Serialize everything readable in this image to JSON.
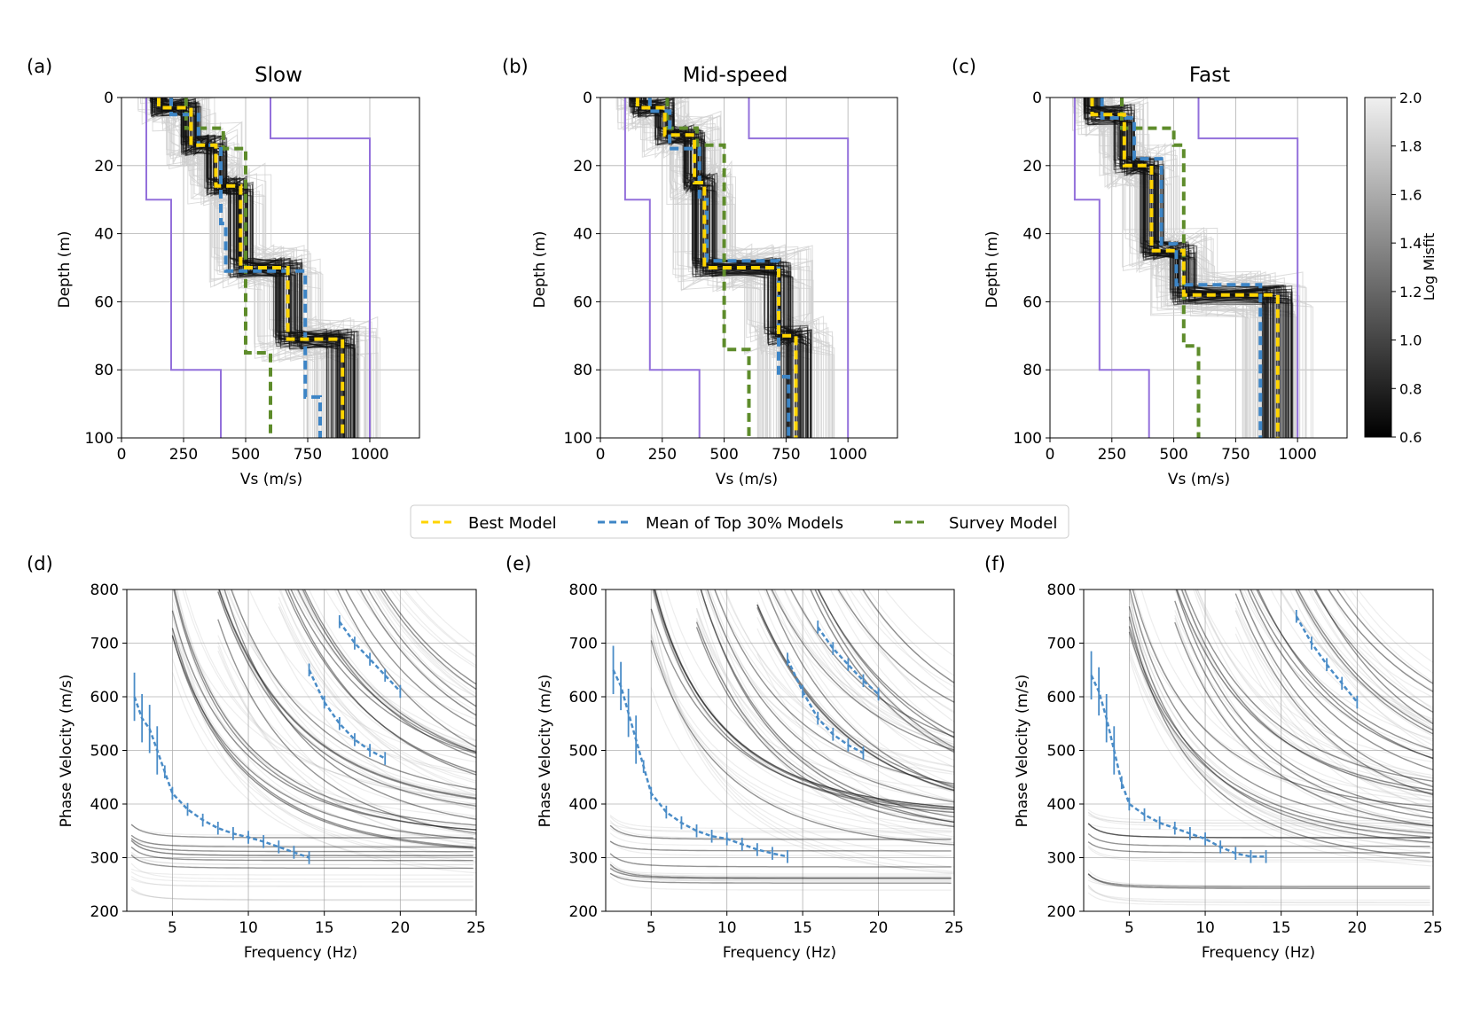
{
  "figure": {
    "legend": [
      {
        "label": "Best Model",
        "color": "#ffd400"
      },
      {
        "label": "Mean of Top 30% Models",
        "color": "#3d85c6"
      },
      {
        "label": "Survey Model",
        "color": "#5e8c2b"
      }
    ],
    "colorbar": {
      "label": "Log Misfit",
      "min": 0.6,
      "max": 2.0,
      "ticks": [
        "2.0",
        "1.8",
        "1.6",
        "1.4",
        "1.2",
        "1.0",
        "0.8",
        "0.6"
      ]
    },
    "colors": {
      "bounds": "#9370db",
      "best": "#ffd400",
      "mean": "#3d85c6",
      "survey": "#5e8c2b",
      "observed": "#4a8cc7"
    }
  },
  "chart_data": [
    {
      "type": "line",
      "panel": "(a)",
      "title": "Slow",
      "xlabel": "Vs (m/s)",
      "ylabel": "Depth (m)",
      "xlim": [
        0,
        1200
      ],
      "ylim": [
        100,
        0
      ],
      "xticks": [
        0,
        250,
        500,
        750,
        1000
      ],
      "yticks": [
        0,
        20,
        40,
        60,
        80,
        100
      ],
      "bounds_min": {
        "vs": [
          100,
          100,
          200,
          200,
          400,
          400
        ],
        "depth": [
          0,
          30,
          30,
          80,
          80,
          100
        ]
      },
      "bounds_max": {
        "vs": [
          600,
          600,
          1000,
          1000
        ],
        "depth": [
          0,
          12,
          12,
          100
        ]
      },
      "best": {
        "vs": [
          150,
          150,
          280,
          280,
          380,
          380,
          480,
          480,
          670,
          670,
          890,
          890
        ],
        "depth": [
          0,
          3,
          3,
          14,
          14,
          26,
          26,
          50,
          50,
          71,
          71,
          100
        ]
      },
      "mean": {
        "vs": [
          200,
          200,
          310,
          310,
          400,
          400,
          420,
          420,
          740,
          740,
          800,
          800
        ],
        "depth": [
          0,
          5,
          5,
          14,
          14,
          37,
          37,
          51,
          51,
          88,
          88,
          100
        ]
      },
      "survey": {
        "vs": [
          260,
          260,
          410,
          410,
          500,
          500,
          600,
          600
        ],
        "depth": [
          0,
          9,
          9,
          15,
          15,
          75,
          75,
          100
        ]
      }
    },
    {
      "type": "line",
      "panel": "(b)",
      "title": "Mid-speed",
      "xlabel": "Vs (m/s)",
      "ylabel": "Depth (m)",
      "xlim": [
        0,
        1200
      ],
      "ylim": [
        100,
        0
      ],
      "xticks": [
        0,
        250,
        500,
        750,
        1000
      ],
      "yticks": [
        0,
        20,
        40,
        60,
        80,
        100
      ],
      "bounds_min": {
        "vs": [
          100,
          100,
          200,
          200,
          400,
          400
        ],
        "depth": [
          0,
          30,
          30,
          80,
          80,
          100
        ]
      },
      "bounds_max": {
        "vs": [
          600,
          600,
          1000,
          1000
        ],
        "depth": [
          0,
          12,
          12,
          100
        ]
      },
      "best": {
        "vs": [
          150,
          150,
          260,
          260,
          380,
          380,
          420,
          420,
          720,
          720,
          790,
          790
        ],
        "depth": [
          0,
          3,
          3,
          11,
          11,
          25,
          25,
          50,
          50,
          70,
          70,
          100
        ]
      },
      "mean": {
        "vs": [
          200,
          200,
          280,
          280,
          400,
          400,
          430,
          430,
          720,
          720,
          760,
          760
        ],
        "depth": [
          0,
          4,
          4,
          15,
          15,
          30,
          30,
          48,
          48,
          82,
          82,
          100
        ]
      },
      "survey": {
        "vs": [
          270,
          270,
          390,
          390,
          500,
          500,
          600,
          600
        ],
        "depth": [
          0,
          9,
          9,
          14,
          14,
          74,
          74,
          100
        ]
      }
    },
    {
      "type": "line",
      "panel": "(c)",
      "title": "Fast",
      "xlabel": "Vs (m/s)",
      "ylabel": "Depth (m)",
      "xlim": [
        0,
        1200
      ],
      "ylim": [
        100,
        0
      ],
      "xticks": [
        0,
        250,
        500,
        750,
        1000
      ],
      "yticks": [
        0,
        20,
        40,
        60,
        80,
        100
      ],
      "bounds_min": {
        "vs": [
          100,
          100,
          200,
          200,
          400,
          400
        ],
        "depth": [
          0,
          30,
          30,
          80,
          80,
          100
        ]
      },
      "bounds_max": {
        "vs": [
          600,
          600,
          1000,
          1000
        ],
        "depth": [
          0,
          12,
          12,
          100
        ]
      },
      "best": {
        "vs": [
          170,
          170,
          300,
          300,
          410,
          410,
          540,
          540,
          920,
          920
        ],
        "depth": [
          0,
          5,
          5,
          20,
          20,
          45,
          45,
          58,
          58,
          100
        ]
      },
      "mean": {
        "vs": [
          210,
          210,
          340,
          340,
          450,
          450,
          510,
          510,
          850,
          850
        ],
        "depth": [
          0,
          6,
          6,
          18,
          18,
          43,
          43,
          55,
          55,
          100
        ]
      },
      "survey": {
        "vs": [
          290,
          290,
          500,
          500,
          540,
          540,
          600,
          600
        ],
        "depth": [
          0,
          9,
          9,
          14,
          14,
          73,
          73,
          100
        ]
      }
    },
    {
      "type": "line",
      "panel": "(d)",
      "xlabel": "Frequency (Hz)",
      "ylabel": "Phase Velocity (m/s)",
      "xlim": [
        2,
        25
      ],
      "ylim": [
        200,
        800
      ],
      "xticks": [
        5,
        10,
        15,
        20,
        25
      ],
      "yticks": [
        200,
        300,
        400,
        500,
        600,
        700,
        800
      ],
      "observed": [
        {
          "f": [
            2.5,
            3,
            3.5,
            4,
            4.5,
            5,
            6,
            7,
            8,
            9,
            10,
            11,
            12,
            13,
            14
          ],
          "v": [
            600,
            560,
            540,
            500,
            460,
            420,
            390,
            370,
            355,
            345,
            338,
            330,
            320,
            310,
            300
          ]
        },
        {
          "f": [
            14,
            15,
            16,
            17,
            18,
            19
          ],
          "v": [
            650,
            590,
            550,
            520,
            500,
            485
          ]
        },
        {
          "f": [
            16,
            17,
            18,
            19,
            20
          ],
          "v": [
            740,
            700,
            670,
            640,
            610
          ]
        }
      ]
    },
    {
      "type": "line",
      "panel": "(e)",
      "xlabel": "Frequency (Hz)",
      "ylabel": "Phase Velocity (m/s)",
      "xlim": [
        2,
        25
      ],
      "ylim": [
        200,
        800
      ],
      "xticks": [
        5,
        10,
        15,
        20,
        25
      ],
      "yticks": [
        200,
        300,
        400,
        500,
        600,
        700,
        800
      ],
      "observed": [
        {
          "f": [
            2.5,
            3,
            3.5,
            4,
            4.5,
            5,
            6,
            7,
            8,
            9,
            10,
            11,
            12,
            13,
            14
          ],
          "v": [
            650,
            620,
            570,
            520,
            470,
            420,
            385,
            365,
            350,
            340,
            335,
            325,
            315,
            308,
            302
          ]
        },
        {
          "f": [
            14,
            15,
            16,
            17,
            18,
            19
          ],
          "v": [
            670,
            610,
            560,
            530,
            510,
            495
          ]
        },
        {
          "f": [
            16,
            17,
            18,
            19,
            20
          ],
          "v": [
            730,
            690,
            660,
            630,
            605
          ]
        }
      ]
    },
    {
      "type": "line",
      "panel": "(f)",
      "xlabel": "Frequency (Hz)",
      "ylabel": "Phase Velocity (m/s)",
      "xlim": [
        2,
        25
      ],
      "ylim": [
        200,
        800
      ],
      "xticks": [
        5,
        10,
        15,
        20,
        25
      ],
      "yticks": [
        200,
        300,
        400,
        500,
        600,
        700,
        800
      ],
      "observed": [
        {
          "f": [
            2.5,
            3,
            3.5,
            4,
            4.5,
            5,
            6,
            7,
            8,
            9,
            10,
            11,
            12,
            13,
            14
          ],
          "v": [
            640,
            610,
            560,
            500,
            440,
            400,
            380,
            365,
            355,
            345,
            335,
            320,
            308,
            302,
            302
          ]
        },
        {
          "f": [
            16,
            17,
            18,
            19,
            20
          ],
          "v": [
            750,
            700,
            660,
            625,
            590
          ]
        }
      ]
    }
  ]
}
